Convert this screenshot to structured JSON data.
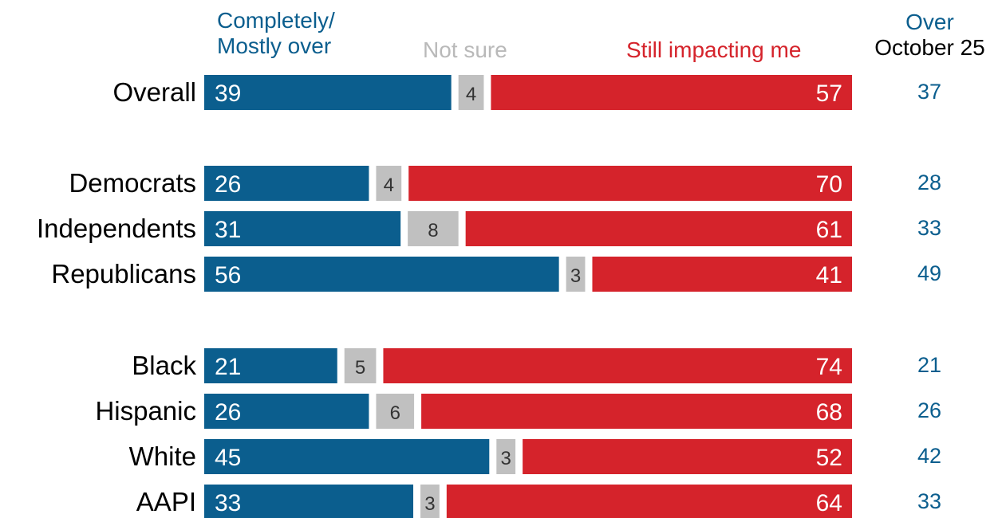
{
  "legend": {
    "over_line1": "Completely/",
    "over_line2": "Mostly over",
    "not_sure": "Not sure",
    "still": "Still impacting me",
    "oct_line1": "Over",
    "oct_line2": "October 25"
  },
  "colors": {
    "over": "#0b5e8e",
    "not_sure": "#c0c0c0",
    "still": "#d5232b",
    "oct": "#0b5e8e",
    "label": "#000000"
  },
  "chart_data": {
    "type": "bar",
    "orientation": "horizontal",
    "stacked": true,
    "unit": "percent",
    "categories": [
      "Overall",
      "Democrats",
      "Independents",
      "Republicans",
      "Black",
      "Hispanic",
      "White",
      "AAPI"
    ],
    "groups": [
      [
        "Overall"
      ],
      [
        "Democrats",
        "Independents",
        "Republicans"
      ],
      [
        "Black",
        "Hispanic",
        "White",
        "AAPI"
      ]
    ],
    "series": [
      {
        "name": "Completely/ Mostly over",
        "values": [
          39,
          26,
          31,
          56,
          21,
          26,
          45,
          33
        ]
      },
      {
        "name": "Not sure",
        "values": [
          4,
          4,
          8,
          3,
          5,
          6,
          3,
          3
        ]
      },
      {
        "name": "Still impacting me",
        "values": [
          57,
          70,
          61,
          41,
          74,
          68,
          52,
          64
        ]
      }
    ],
    "comparison": {
      "name": "Over October 25",
      "values": [
        37,
        28,
        33,
        49,
        21,
        26,
        42,
        33
      ]
    },
    "xlim": [
      0,
      100
    ]
  }
}
